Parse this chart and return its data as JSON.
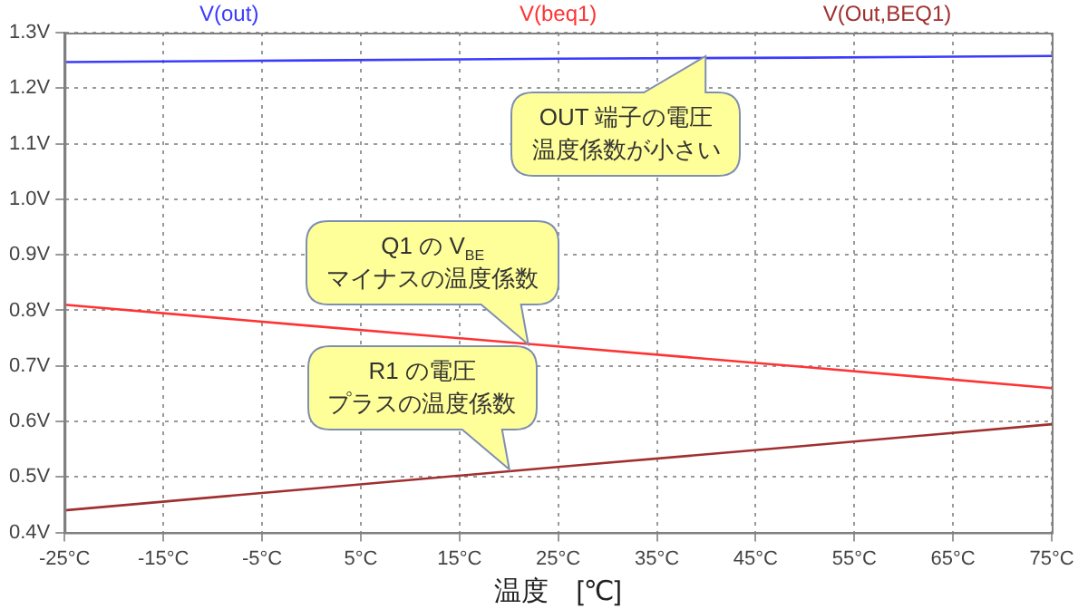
{
  "chart_data": {
    "type": "line",
    "xlabel": "温度　[℃]",
    "x": [
      -25,
      0,
      25,
      50,
      75
    ],
    "series": [
      {
        "name": "V(out)",
        "color": "#3b3bff",
        "values": [
          1.247,
          1.25,
          1.253,
          1.255,
          1.258
        ]
      },
      {
        "name": "V(beq1)",
        "color": "#ff3333",
        "values": [
          0.81,
          0.772,
          0.735,
          0.698,
          0.66
        ]
      },
      {
        "name": "V(Out,BEQ1)",
        "color": "#a03030",
        "values": [
          0.44,
          0.479,
          0.518,
          0.556,
          0.595
        ]
      }
    ],
    "xlim": [
      -25,
      75
    ],
    "xticks": [
      {
        "value": -25,
        "label": "-25°C"
      },
      {
        "value": -15,
        "label": "-15°C"
      },
      {
        "value": -5,
        "label": "-5°C"
      },
      {
        "value": 5,
        "label": "5°C"
      },
      {
        "value": 15,
        "label": "15°C"
      },
      {
        "value": 25,
        "label": "25°C"
      },
      {
        "value": 35,
        "label": "35°C"
      },
      {
        "value": 45,
        "label": "45°C"
      },
      {
        "value": 55,
        "label": "55°C"
      },
      {
        "value": 65,
        "label": "65°C"
      },
      {
        "value": 75,
        "label": "75°C"
      }
    ],
    "ylim": [
      0.4,
      1.3
    ],
    "yticks": [
      {
        "value": 0.4,
        "label": "0.4V"
      },
      {
        "value": 0.5,
        "label": "0.5V"
      },
      {
        "value": 0.6,
        "label": "0.6V"
      },
      {
        "value": 0.7,
        "label": "0.7V"
      },
      {
        "value": 0.8,
        "label": "0.8V"
      },
      {
        "value": 0.9,
        "label": "0.9V"
      },
      {
        "value": 1.0,
        "label": "1.0V"
      },
      {
        "value": 1.1,
        "label": "1.1V"
      },
      {
        "value": 1.2,
        "label": "1.2V"
      },
      {
        "value": 1.3,
        "label": "1.3V"
      }
    ],
    "grid": true,
    "legend": "top",
    "marker": "none",
    "line_style": "solid",
    "annotations": [
      {
        "text": "OUT 端子の電圧",
        "x": 40,
        "y": 1.256
      },
      "温度係数が小さい",
      "Q1 の V$_{BE}$",
      {
        "text": "マイナスの温度係数",
        "x": 22,
        "y": 0.74
      },
      "R1 の電圧",
      {
        "text": "プラスの温度係数",
        "x": 20,
        "y": 0.515
      }
    ]
  }
}
